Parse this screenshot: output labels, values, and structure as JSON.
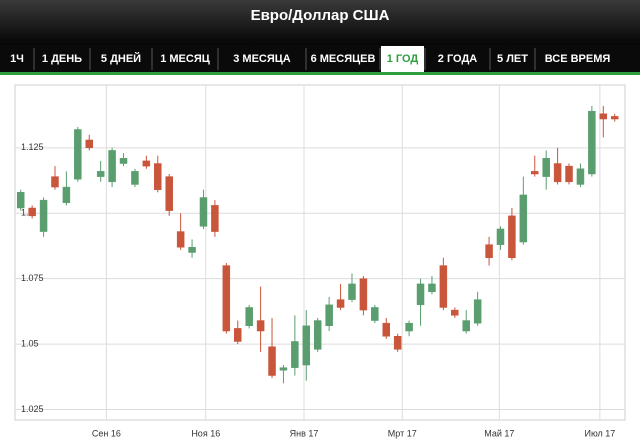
{
  "header": {
    "title": "Евро/Доллар США"
  },
  "tabs": [
    "1Ч",
    "1 ДЕНЬ",
    "5 ДНЕЙ",
    "1 МЕСЯЦ",
    "3 МЕСЯЦА",
    "6 МЕСЯЦЕВ",
    "1 ГОД",
    "2 ГОДА",
    "5 ЛЕТ",
    "ВСЕ ВРЕМЯ"
  ],
  "active_tab": 6,
  "chart_data": {
    "type": "candlestick",
    "open": [
      1.102,
      1.102,
      1.093,
      1.114,
      1.104,
      1.113,
      1.128,
      1.114,
      1.112,
      1.119,
      1.111,
      1.12,
      1.119,
      1.114,
      1.093,
      1.085,
      1.095,
      1.103,
      1.08,
      1.056,
      1.057,
      1.059,
      1.049,
      1.04,
      1.041,
      1.042,
      1.048,
      1.057,
      1.067,
      1.067,
      1.075,
      1.059,
      1.058,
      1.053,
      1.055,
      1.065,
      1.07,
      1.08,
      1.063,
      1.055,
      1.058,
      1.088,
      1.088,
      1.099,
      1.089,
      1.116,
      1.114,
      1.119,
      1.118,
      1.111,
      1.115,
      1.138,
      1.137
    ],
    "high": [
      1.109,
      1.103,
      1.106,
      1.118,
      1.116,
      1.133,
      1.13,
      1.12,
      1.125,
      1.123,
      1.117,
      1.122,
      1.122,
      1.115,
      1.1,
      1.09,
      1.109,
      1.105,
      1.081,
      1.059,
      1.065,
      1.072,
      1.06,
      1.042,
      1.061,
      1.063,
      1.06,
      1.068,
      1.073,
      1.077,
      1.076,
      1.065,
      1.06,
      1.054,
      1.059,
      1.075,
      1.076,
      1.083,
      1.064,
      1.063,
      1.07,
      1.091,
      1.095,
      1.102,
      1.114,
      1.122,
      1.124,
      1.125,
      1.119,
      1.119,
      1.141,
      1.141,
      1.138
    ],
    "low": [
      1.101,
      1.098,
      1.091,
      1.109,
      1.103,
      1.112,
      1.124,
      1.112,
      1.11,
      1.118,
      1.11,
      1.117,
      1.108,
      1.099,
      1.086,
      1.083,
      1.094,
      1.091,
      1.054,
      1.05,
      1.056,
      1.047,
      1.037,
      1.035,
      1.038,
      1.036,
      1.047,
      1.055,
      1.063,
      1.066,
      1.061,
      1.058,
      1.052,
      1.047,
      1.053,
      1.057,
      1.069,
      1.063,
      1.06,
      1.054,
      1.057,
      1.08,
      1.086,
      1.082,
      1.088,
      1.114,
      1.109,
      1.111,
      1.111,
      1.11,
      1.114,
      1.129,
      1.135
    ],
    "close": [
      1.108,
      1.099,
      1.105,
      1.11,
      1.11,
      1.132,
      1.125,
      1.116,
      1.124,
      1.121,
      1.116,
      1.118,
      1.109,
      1.101,
      1.087,
      1.087,
      1.106,
      1.093,
      1.055,
      1.051,
      1.064,
      1.055,
      1.038,
      1.041,
      1.051,
      1.057,
      1.059,
      1.065,
      1.064,
      1.073,
      1.063,
      1.064,
      1.053,
      1.048,
      1.058,
      1.073,
      1.073,
      1.064,
      1.061,
      1.059,
      1.067,
      1.083,
      1.094,
      1.083,
      1.107,
      1.115,
      1.121,
      1.112,
      1.112,
      1.117,
      1.139,
      1.136,
      1.136
    ],
    "up_color": "#5a9e6f",
    "down_color": "#c9553b",
    "ylim": [
      1.021,
      1.149
    ],
    "yticks": [
      1.125,
      1.1,
      1.075,
      1.05,
      1.025
    ],
    "xlim": [
      -0.5,
      52.9
    ],
    "xticks": [
      {
        "value": 7.5,
        "label": "Сен 16"
      },
      {
        "value": 16.2,
        "label": "Ноя 16"
      },
      {
        "value": 24.8,
        "label": "Янв 17"
      },
      {
        "value": 33.4,
        "label": "Мрт 17"
      },
      {
        "value": 41.9,
        "label": "Май 17"
      },
      {
        "value": 50.7,
        "label": "Июл 17"
      }
    ],
    "grid": true
  }
}
